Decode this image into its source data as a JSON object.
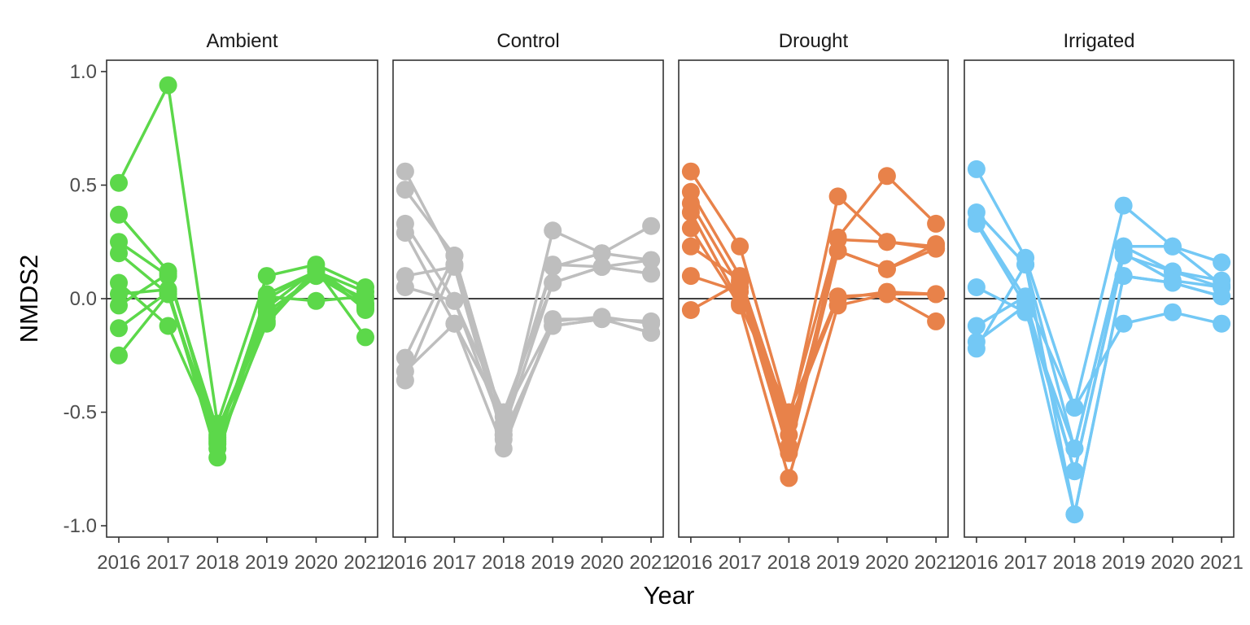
{
  "chart_data": {
    "type": "line",
    "xlabel": "Year",
    "ylabel": "NMDS2",
    "x": [
      "2016",
      "2017",
      "2018",
      "2019",
      "2020",
      "2021"
    ],
    "ylim": [
      -1.05,
      1.05
    ],
    "yticks": [
      1.0,
      0.5,
      0.0,
      -0.5,
      -1.0
    ],
    "ytick_labels": [
      "1.0",
      "0.5",
      "0.0",
      "-0.5",
      "-1.0"
    ],
    "xtick_labels": [
      "2016",
      "2017",
      "2018",
      "2019",
      "2020",
      "2021"
    ],
    "reference_line": 0,
    "grid": false,
    "legend": "none",
    "facets": [
      {
        "name": "Ambient",
        "color": "#5CD84A",
        "series": [
          {
            "values": [
              0.51,
              0.94,
              -0.55,
              0.1,
              0.15,
              0.05
            ]
          },
          {
            "values": [
              0.37,
              0.12,
              -0.63,
              0.02,
              0.12,
              0.03
            ]
          },
          {
            "values": [
              0.25,
              0.1,
              -0.58,
              -0.06,
              0.1,
              -0.03
            ]
          },
          {
            "values": [
              0.2,
              0.02,
              -0.66,
              -0.1,
              0.13,
              -0.05
            ]
          },
          {
            "values": [
              0.07,
              -0.12,
              -0.61,
              -0.04,
              0.13,
              -0.17
            ]
          },
          {
            "values": [
              0.02,
              0.04,
              -0.7,
              0.01,
              -0.01,
              0.01
            ]
          },
          {
            "values": [
              -0.03,
              0.11,
              -0.6,
              -0.08,
              0.1,
              0.0
            ]
          },
          {
            "values": [
              -0.13,
              0.03,
              -0.64,
              -0.11,
              0.13,
              -0.02
            ]
          },
          {
            "values": [
              -0.25,
              0.02,
              -0.62,
              0.0,
              0.12,
              -0.04
            ]
          }
        ]
      },
      {
        "name": "Control",
        "color": "#BEBEBE",
        "series": [
          {
            "values": [
              0.56,
              0.15,
              -0.6,
              0.3,
              0.2,
              0.32
            ]
          },
          {
            "values": [
              0.48,
              0.19,
              -0.55,
              0.15,
              0.14,
              0.17
            ]
          },
          {
            "values": [
              0.33,
              -0.01,
              -0.5,
              0.07,
              0.14,
              0.11
            ]
          },
          {
            "values": [
              0.29,
              -0.11,
              -0.66,
              -0.09,
              -0.09,
              -0.1
            ]
          },
          {
            "values": [
              0.1,
              0.14,
              -0.62,
              -0.12,
              -0.09,
              -0.15
            ]
          },
          {
            "values": [
              0.05,
              -0.01,
              -0.58,
              0.07,
              0.14,
              0.11
            ]
          },
          {
            "values": [
              -0.26,
              0.19,
              -0.55,
              0.14,
              0.2,
              0.17
            ]
          },
          {
            "values": [
              -0.32,
              -0.11,
              -0.52,
              -0.1,
              -0.08,
              -0.11
            ]
          },
          {
            "values": [
              -0.36,
              0.15,
              -0.6,
              -0.12,
              -0.09,
              -0.15
            ]
          }
        ]
      },
      {
        "name": "Drought",
        "color": "#E8824A",
        "series": [
          {
            "values": [
              0.56,
              0.23,
              -0.52,
              0.27,
              0.54,
              0.33
            ]
          },
          {
            "values": [
              0.47,
              0.1,
              -0.55,
              0.45,
              0.25,
              0.22
            ]
          },
          {
            "values": [
              0.42,
              0.05,
              -0.68,
              0.21,
              0.13,
              0.24
            ]
          },
          {
            "values": [
              0.38,
              -0.02,
              -0.5,
              0.01,
              0.02,
              0.02
            ]
          },
          {
            "values": [
              0.31,
              -0.03,
              -0.79,
              -0.03,
              0.02,
              -0.1
            ]
          },
          {
            "values": [
              0.23,
              0.08,
              -0.65,
              0.26,
              0.25,
              0.23
            ]
          },
          {
            "values": [
              0.1,
              0.03,
              -0.55,
              0.0,
              0.03,
              0.02
            ]
          },
          {
            "values": [
              -0.05,
              0.07,
              -0.6,
              0.21,
              0.13,
              0.22
            ]
          }
        ]
      },
      {
        "name": "Irrigated",
        "color": "#73C8F5",
        "series": [
          {
            "values": [
              0.57,
              0.18,
              -0.48,
              0.41,
              0.23,
              0.16
            ]
          },
          {
            "values": [
              0.38,
              0.15,
              -0.66,
              0.23,
              0.12,
              0.08
            ]
          },
          {
            "values": [
              0.34,
              0.0,
              -0.76,
              0.2,
              0.08,
              0.05
            ]
          },
          {
            "values": [
              0.33,
              -0.03,
              -0.95,
              0.1,
              0.07,
              0.01
            ]
          },
          {
            "values": [
              0.05,
              -0.06,
              -0.66,
              0.23,
              0.23,
              0.06
            ]
          },
          {
            "values": [
              -0.12,
              0.01,
              -0.48,
              -0.11,
              -0.06,
              -0.11
            ]
          },
          {
            "values": [
              -0.19,
              -0.03,
              -0.76,
              0.19,
              0.12,
              0.05
            ]
          },
          {
            "values": [
              -0.22,
              0.15,
              -0.95,
              0.1,
              0.07,
              0.01
            ]
          }
        ]
      }
    ]
  }
}
